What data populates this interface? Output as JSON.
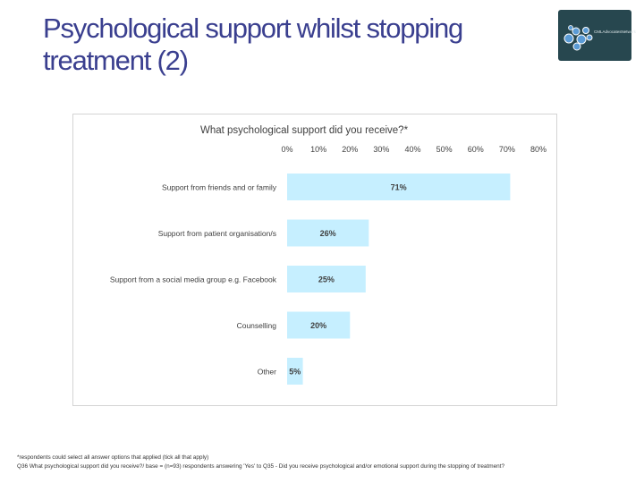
{
  "slide": {
    "title_line1": "Psychological support whilst stopping",
    "title_line2": "treatment (2)",
    "logo_text": "CMLAdvocatesNetwork",
    "footnote_line1": "*respondents could select all answer options that applied (tick all that apply)",
    "footnote_line2": "Q36 What psychological support did you receive?/ base = (n=93) respondents answering 'Yes' to Q35 - Did you receive psychological and/or emotional support during the stopping of treatment?"
  },
  "colors": {
    "title": "#3a3f8f",
    "bar": "#c6efff",
    "logo_bg": "#27474f",
    "logo_dots": "#5b9bd5"
  },
  "chart_data": {
    "type": "bar",
    "orientation": "horizontal",
    "title": "What psychological support did you receive?*",
    "categories": [
      "Support from friends and or family",
      "Support from patient organisation/s",
      "Support from a social media group e.g. Facebook",
      "Counselling",
      "Other"
    ],
    "values": [
      71,
      26,
      25,
      20,
      5
    ],
    "data_labels": [
      "71%",
      "26%",
      "25%",
      "20%",
      "5%"
    ],
    "xlim": [
      0,
      80
    ],
    "x_ticks": [
      "0%",
      "10%",
      "20%",
      "30%",
      "40%",
      "50%",
      "60%",
      "70%",
      "80%"
    ],
    "x_axis_position": "top",
    "grid": false,
    "legend": "none"
  }
}
